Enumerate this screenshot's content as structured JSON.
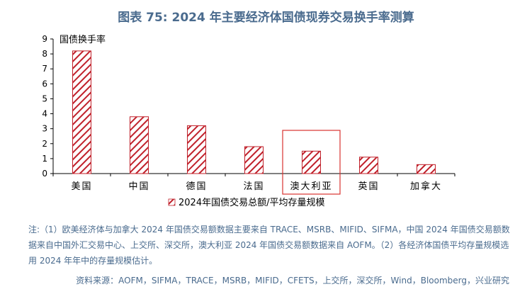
{
  "title": "图表 75: 2024 年主要经济体国债现券交易换手率测算",
  "chart_data": {
    "type": "bar",
    "ylabel": "国债换手率",
    "categories": [
      "美国",
      "中国",
      "德国",
      "法国",
      "澳大利亚",
      "英国",
      "加拿大"
    ],
    "series": [
      {
        "name": "2024年国债交易总额/平均存量规模",
        "values": [
          8.2,
          3.8,
          3.2,
          1.8,
          1.5,
          1.1,
          0.6
        ]
      }
    ],
    "ylim": [
      0,
      9
    ],
    "yticks": [
      0,
      1,
      2,
      3,
      4,
      5,
      6,
      7,
      8,
      9
    ],
    "highlight_category": "澳大利亚",
    "grid": false,
    "legend_position": "bottom",
    "colors": {
      "bar_stroke": "#c0202a",
      "highlight_box": "#d9322f",
      "axis": "#000000"
    }
  },
  "note": "注:（1）欧美经济体与加拿大 2024 年国债交易额数据主要来自 TRACE、MSRB、MIFID、SIFMA，中国 2024 年国债交易额数据来自中国外汇交易中心、上交所、深交所，澳大利亚 2024 年国债交易额数据来自 AOFM。（2）各经济体国债平均存量规模选用 2024 年年中的存量规模估计。",
  "source": "资料来源：AOFM，SIFMA，TRACE，MSRB，MIFID，CFETS，上交所，深交所，Wind，Bloomberg，兴业研究"
}
